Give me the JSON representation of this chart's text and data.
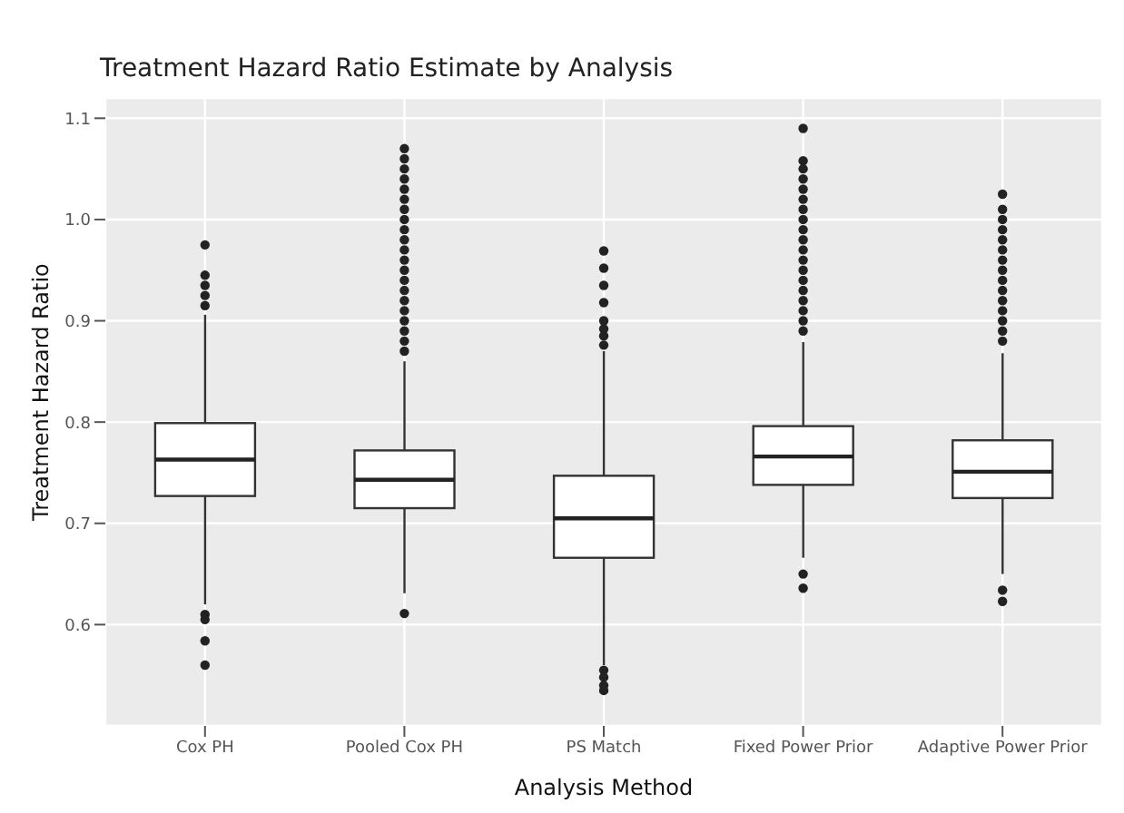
{
  "chart_data": {
    "type": "box",
    "title": "Treatment Hazard Ratio Estimate by Analysis",
    "xlabel": "Analysis Method",
    "ylabel": "Treatment Hazard Ratio",
    "categories": [
      "Cox PH",
      "Pooled Cox PH",
      "PS Match",
      "Fixed Power Prior",
      "Adaptive Power Prior"
    ],
    "boxes": [
      {
        "low": 0.62,
        "q1": 0.727,
        "median": 0.763,
        "q3": 0.799,
        "high": 0.906,
        "outliers": [
          0.975,
          0.945,
          0.935,
          0.925,
          0.915,
          0.61,
          0.605,
          0.584,
          0.56
        ]
      },
      {
        "low": 0.631,
        "q1": 0.715,
        "median": 0.743,
        "q3": 0.772,
        "high": 0.86,
        "outliers": [
          0.87,
          0.88,
          0.89,
          0.9,
          0.91,
          0.92,
          0.93,
          0.94,
          0.95,
          0.96,
          0.97,
          0.98,
          0.99,
          1.0,
          1.01,
          1.02,
          1.03,
          1.04,
          1.05,
          1.06,
          1.07,
          0.611
        ]
      },
      {
        "low": 0.56,
        "q1": 0.666,
        "median": 0.705,
        "q3": 0.747,
        "high": 0.87,
        "outliers": [
          0.969,
          0.952,
          0.935,
          0.918,
          0.9,
          0.892,
          0.885,
          0.876,
          0.555,
          0.548,
          0.54,
          0.535
        ]
      },
      {
        "low": 0.666,
        "q1": 0.738,
        "median": 0.766,
        "q3": 0.796,
        "high": 0.879,
        "outliers": [
          1.09,
          1.058,
          1.05,
          1.04,
          1.03,
          1.02,
          1.01,
          1.0,
          0.99,
          0.98,
          0.97,
          0.96,
          0.95,
          0.94,
          0.93,
          0.92,
          0.91,
          0.9,
          0.89,
          0.65,
          0.636
        ]
      },
      {
        "low": 0.65,
        "q1": 0.725,
        "median": 0.751,
        "q3": 0.782,
        "high": 0.868,
        "outliers": [
          1.025,
          1.01,
          1.0,
          0.99,
          0.98,
          0.97,
          0.96,
          0.95,
          0.94,
          0.93,
          0.92,
          0.91,
          0.9,
          0.89,
          0.88,
          0.634,
          0.623
        ]
      }
    ],
    "ylim": [
      0.5,
      1.12
    ],
    "yticks": [
      0.6,
      0.7,
      0.8,
      0.9,
      {
        "value": 1,
        "label": "1.0"
      },
      1.1
    ],
    "grid": true
  }
}
